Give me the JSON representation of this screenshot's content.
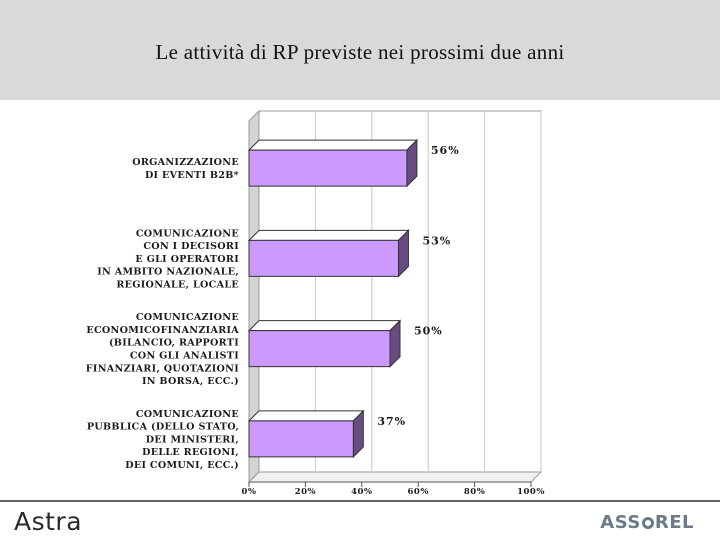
{
  "slide": {
    "title": "Le attività di RP previste nei prossimi due anni"
  },
  "footer": {
    "left_logo": "Astra",
    "right_logo_prefix": "ASS",
    "right_logo_suffix": "REL"
  },
  "colors": {
    "bar_face": "#cc99ff",
    "bar_top": "#ffffff",
    "bar_side": "#664c80",
    "wall": "#d4d4d4",
    "header": "#d9d9d9"
  },
  "chart_data": {
    "type": "bar",
    "orientation": "horizontal",
    "style": "3d",
    "categories": [
      [
        "ORGANIZZAZIONE",
        "DI EVENTI B2B*"
      ],
      [
        "COMUNICAZIONE",
        "CON I DECISORI",
        "E GLI OPERATORI",
        "IN AMBITO NAZIONALE,",
        "REGIONALE, LOCALE"
      ],
      [
        "COMUNICAZIONE",
        "ECONOMICOFINANZIARIA",
        "(BILANCIO, RAPPORTI",
        "CON GLI ANALISTI",
        "FINANZIARI, QUOTAZIONI",
        "IN BORSA, ECC.)"
      ],
      [
        "COMUNICAZIONE",
        "PUBBLICA (DELLO STATO,",
        "DEI MINISTERI,",
        "DELLE REGIONI,",
        "DEI COMUNI, ECC.)"
      ]
    ],
    "values": [
      56,
      53,
      50,
      37
    ],
    "value_labels": [
      "56%",
      "53%",
      "50%",
      "37%"
    ],
    "xlim": [
      0,
      100
    ],
    "xticks": [
      "0%",
      "20%",
      "40%",
      "60%",
      "80%",
      "100%"
    ],
    "grid": true,
    "legend": false
  }
}
